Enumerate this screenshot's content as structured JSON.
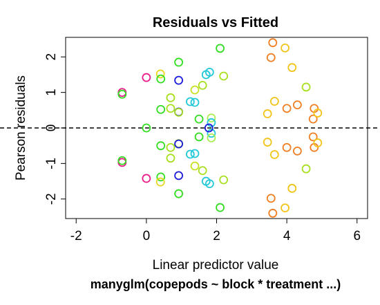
{
  "chart_data": {
    "type": "scatter",
    "title": "Residuals vs Fitted",
    "xlabel": "Linear predictor value",
    "ylabel": "Pearson residuals",
    "subtitle": "manyglm(copepods ~ block * treatment ...)",
    "xlim": [
      -2.3,
      6.3
    ],
    "ylim": [
      -2.55,
      2.55
    ],
    "x_ticks": [
      -2,
      0,
      2,
      4,
      6
    ],
    "x_tick_labels": [
      "-2",
      "0",
      "2",
      "4",
      "6"
    ],
    "y_ticks": [
      -2,
      -1,
      0,
      1,
      2
    ],
    "y_tick_labels": [
      "-2",
      "-1",
      "0",
      "1",
      "2"
    ],
    "reference_line": {
      "y": 0,
      "style": "dashed",
      "color": "#000000"
    },
    "grid": false,
    "legend": "none",
    "points": [
      {
        "x": -0.69,
        "y": 1.0,
        "color": "#e81c8a"
      },
      {
        "x": -0.69,
        "y": 0.95,
        "color": "#33dd22"
      },
      {
        "x": -0.69,
        "y": -0.97,
        "color": "#e81c8a"
      },
      {
        "x": -0.69,
        "y": -0.92,
        "color": "#33dd22"
      },
      {
        "x": 0.0,
        "y": 1.42,
        "color": "#e81c8a"
      },
      {
        "x": 0.0,
        "y": -1.42,
        "color": "#e81c8a"
      },
      {
        "x": 0.0,
        "y": 0.0,
        "color": "#33dd22"
      },
      {
        "x": 0.4,
        "y": 1.52,
        "color": "#e8d820"
      },
      {
        "x": 0.41,
        "y": 1.38,
        "color": "#33dd22"
      },
      {
        "x": 0.41,
        "y": 0.52,
        "color": "#33dd22"
      },
      {
        "x": 0.41,
        "y": -0.5,
        "color": "#33dd22"
      },
      {
        "x": 0.41,
        "y": -1.38,
        "color": "#33dd22"
      },
      {
        "x": 0.4,
        "y": -1.52,
        "color": "#e8d820"
      },
      {
        "x": 0.69,
        "y": 0.85,
        "color": "#a8e020"
      },
      {
        "x": 0.69,
        "y": 0.55,
        "color": "#a8e020"
      },
      {
        "x": 0.69,
        "y": -0.55,
        "color": "#a8e020"
      },
      {
        "x": 0.69,
        "y": -0.85,
        "color": "#a8e020"
      },
      {
        "x": 0.92,
        "y": 1.85,
        "color": "#33dd22"
      },
      {
        "x": 0.92,
        "y": 1.34,
        "color": "#1a1ad8"
      },
      {
        "x": 0.92,
        "y": 0.45,
        "color": "#1a1ad8"
      },
      {
        "x": 0.92,
        "y": 0.44,
        "color": "#a8e020"
      },
      {
        "x": 0.92,
        "y": -0.44,
        "color": "#a8e020"
      },
      {
        "x": 0.92,
        "y": -0.45,
        "color": "#1a1ad8"
      },
      {
        "x": 0.92,
        "y": -1.34,
        "color": "#1a1ad8"
      },
      {
        "x": 0.92,
        "y": -1.85,
        "color": "#33dd22"
      },
      {
        "x": 1.25,
        "y": 0.74,
        "color": "#22c8d8"
      },
      {
        "x": 1.38,
        "y": 0.72,
        "color": "#22c8d8"
      },
      {
        "x": 1.38,
        "y": 1.07,
        "color": "#c8e020"
      },
      {
        "x": 1.38,
        "y": -1.07,
        "color": "#c8e020"
      },
      {
        "x": 1.38,
        "y": -0.72,
        "color": "#22c8d8"
      },
      {
        "x": 1.25,
        "y": -0.74,
        "color": "#22c8d8"
      },
      {
        "x": 1.5,
        "y": 0.25,
        "color": "#33dd22"
      },
      {
        "x": 1.5,
        "y": -0.25,
        "color": "#33dd22"
      },
      {
        "x": 1.6,
        "y": 1.2,
        "color": "#a8e020"
      },
      {
        "x": 1.6,
        "y": -1.2,
        "color": "#a8e020"
      },
      {
        "x": 1.7,
        "y": 1.5,
        "color": "#22c8d8"
      },
      {
        "x": 1.8,
        "y": 1.57,
        "color": "#22c8d8"
      },
      {
        "x": 1.7,
        "y": -1.5,
        "color": "#22c8d8"
      },
      {
        "x": 1.8,
        "y": -1.57,
        "color": "#22c8d8"
      },
      {
        "x": 1.85,
        "y": 0.28,
        "color": "#aaee55"
      },
      {
        "x": 1.85,
        "y": 0.15,
        "color": "#22c8d8"
      },
      {
        "x": 1.85,
        "y": -0.15,
        "color": "#22c8d8"
      },
      {
        "x": 1.85,
        "y": -0.28,
        "color": "#aaee55"
      },
      {
        "x": 1.78,
        "y": 0.0,
        "color": "#1a1ad8"
      },
      {
        "x": 2.1,
        "y": 2.24,
        "color": "#33dd22"
      },
      {
        "x": 2.1,
        "y": -2.24,
        "color": "#33dd22"
      },
      {
        "x": 2.2,
        "y": 1.46,
        "color": "#a8e020"
      },
      {
        "x": 2.2,
        "y": -1.46,
        "color": "#a8e020"
      },
      {
        "x": 3.45,
        "y": 0.4,
        "color": "#f2c418"
      },
      {
        "x": 3.45,
        "y": -0.4,
        "color": "#f2c418"
      },
      {
        "x": 3.55,
        "y": 1.98,
        "color": "#f07e22"
      },
      {
        "x": 3.55,
        "y": -1.98,
        "color": "#f07e22"
      },
      {
        "x": 3.6,
        "y": 2.4,
        "color": "#f07e22"
      },
      {
        "x": 3.6,
        "y": -2.4,
        "color": "#f07e22"
      },
      {
        "x": 3.65,
        "y": 0.75,
        "color": "#f2c418"
      },
      {
        "x": 3.65,
        "y": -0.75,
        "color": "#f2c418"
      },
      {
        "x": 3.95,
        "y": 2.25,
        "color": "#f2c418"
      },
      {
        "x": 3.95,
        "y": -2.25,
        "color": "#f2c418"
      },
      {
        "x": 4.0,
        "y": 0.55,
        "color": "#f07e22"
      },
      {
        "x": 4.0,
        "y": -0.55,
        "color": "#f07e22"
      },
      {
        "x": 4.15,
        "y": 1.7,
        "color": "#f2c418"
      },
      {
        "x": 4.15,
        "y": -1.7,
        "color": "#f2c418"
      },
      {
        "x": 4.3,
        "y": 0.65,
        "color": "#f07e22"
      },
      {
        "x": 4.3,
        "y": -0.65,
        "color": "#f07e22"
      },
      {
        "x": 4.55,
        "y": 1.15,
        "color": "#a8e020"
      },
      {
        "x": 4.55,
        "y": -1.15,
        "color": "#a8e020"
      },
      {
        "x": 4.75,
        "y": 0.25,
        "color": "#f07e22"
      },
      {
        "x": 4.75,
        "y": -0.25,
        "color": "#f07e22"
      },
      {
        "x": 4.78,
        "y": 0.55,
        "color": "#f07e22"
      },
      {
        "x": 4.78,
        "y": -0.55,
        "color": "#f07e22"
      },
      {
        "x": 4.88,
        "y": 0.42,
        "color": "#f2c418"
      },
      {
        "x": 4.88,
        "y": -0.42,
        "color": "#f2c418"
      }
    ]
  }
}
